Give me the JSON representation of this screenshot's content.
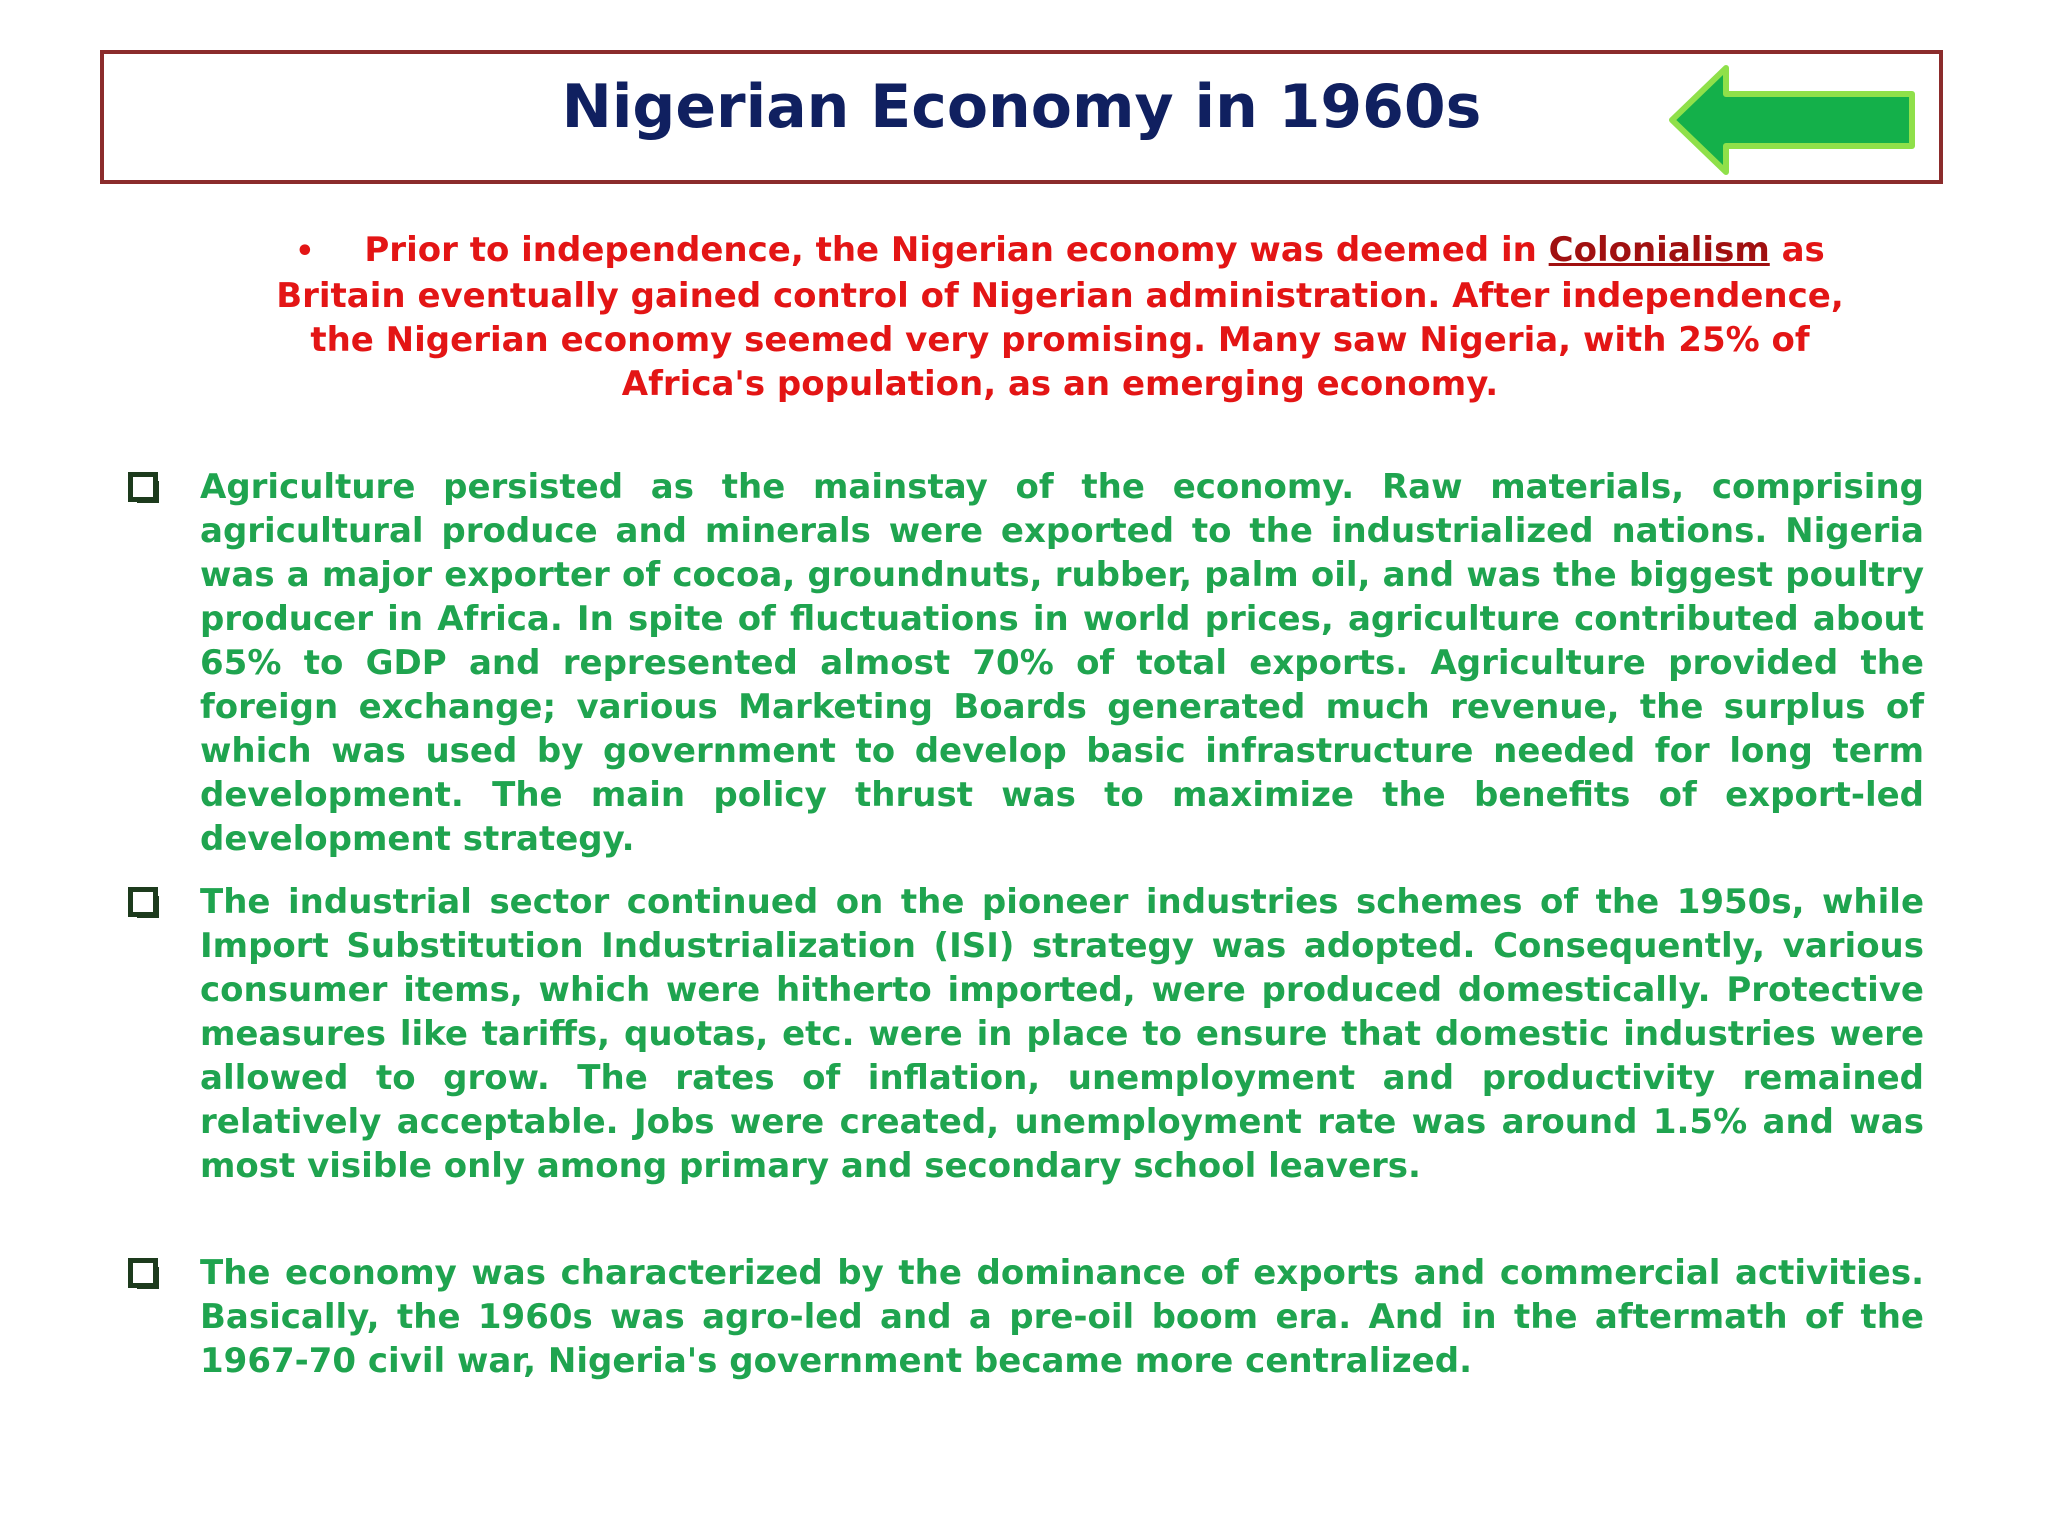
{
  "slide": {
    "title": "Nigerian Economy in 1960s",
    "back_arrow_icon": "left-arrow-icon",
    "colors": {
      "title": "#102060",
      "border": "#8b2c2c",
      "intro_text": "#e31515",
      "body_text": "#1fa44f",
      "arrow_fill": "#14b04a"
    }
  },
  "intro": {
    "bullet": "•",
    "text_before": "Prior to independence, the Nigerian economy was deemed in ",
    "link": "Colonialism",
    "text_after": " as Britain eventually gained control of Nigerian administration. After independence, the Nigerian economy seemed very promising. Many saw Nigeria, with 25% of Africa's population, as an emerging economy."
  },
  "points": [
    "Agriculture persisted as the mainstay of the economy. Raw materials, comprising agricultural produce and minerals were exported to the industrialized nations. Nigeria was a major exporter of cocoa, groundnuts, rubber, palm oil, and was the biggest poultry producer in Africa. In spite of fluctuations in world prices, agriculture contributed about 65% to GDP and represented almost 70% of total exports. Agriculture provided the foreign exchange; various Marketing Boards generated much revenue, the surplus of which was used by government to develop basic infrastructure needed for long term development. The main policy thrust was to maximize the benefits of export-led development strategy.",
    "The industrial sector continued on the pioneer industries schemes of the 1950s, while Import Substitution Industrialization (ISI) strategy was adopted. Consequently, various consumer items, which were hitherto imported, were produced domestically. Protective measures like tariffs, quotas, etc. were in place to ensure that domestic industries were allowed to grow. The rates of inflation, unemployment and productivity remained relatively acceptable. Jobs were created, unemployment rate was around 1.5% and was most visible only among primary and secondary school leavers.",
    "The economy was characterized by the dominance of exports and commercial activities. Basically, the 1960s was agro-led and a pre-oil boom era. And in the aftermath of the 1967-70 civil war, Nigeria's government became more centralized."
  ]
}
